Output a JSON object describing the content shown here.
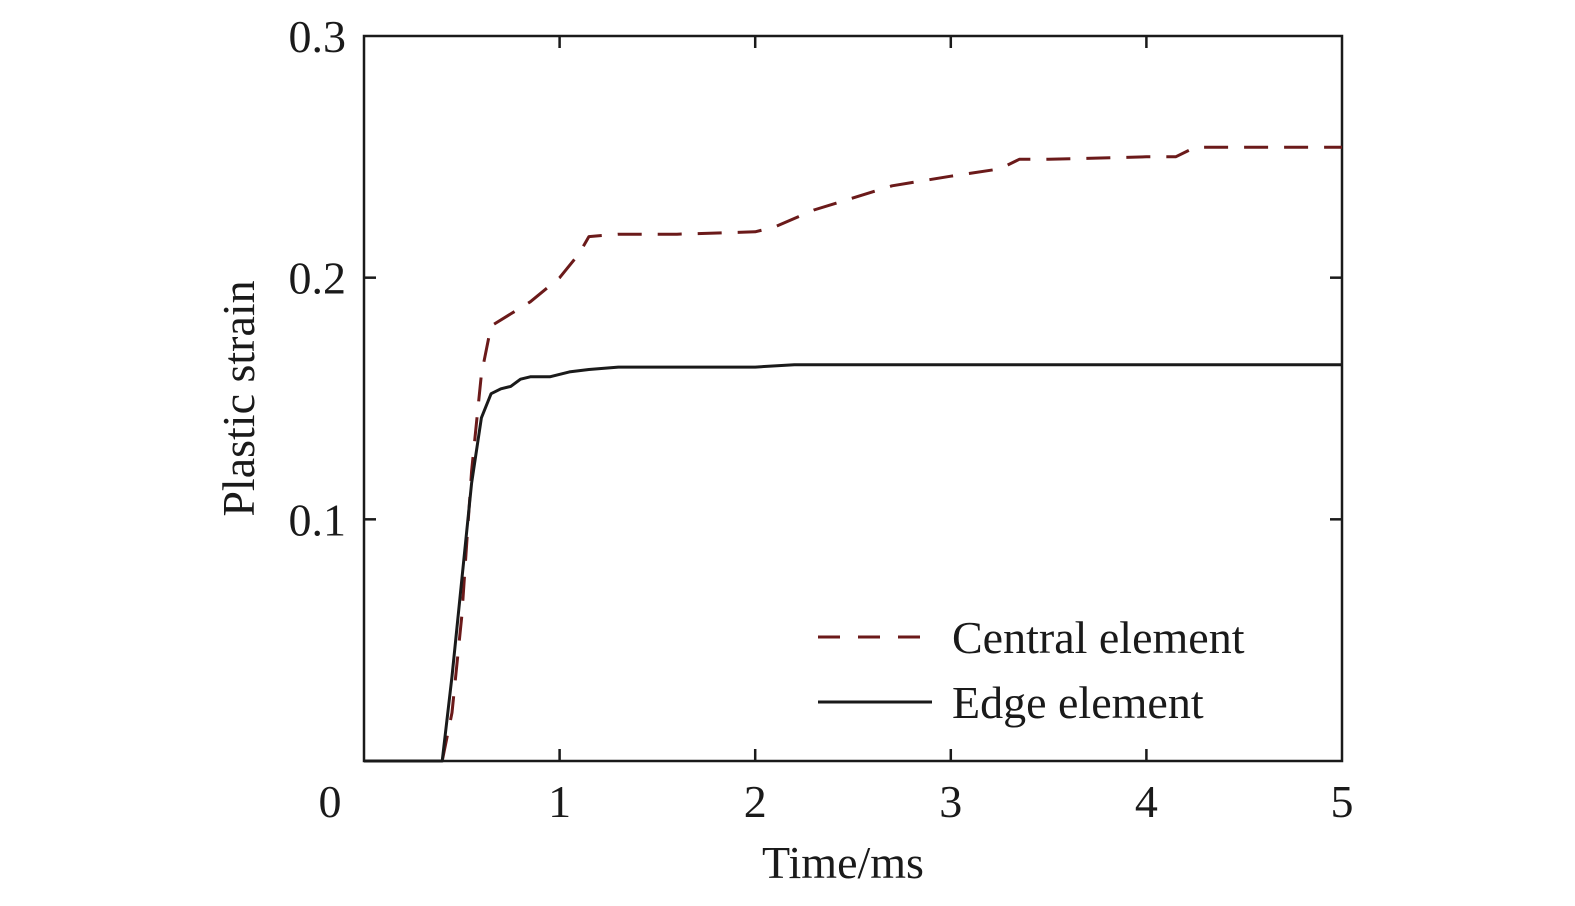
{
  "chart_data": {
    "type": "line",
    "xlabel": "Time/ms",
    "ylabel": "Plastic strain",
    "xlim": [
      0,
      5
    ],
    "ylim": [
      0,
      0.3
    ],
    "xticks": [
      0,
      1,
      2,
      3,
      4,
      5
    ],
    "yticks": [
      0.1,
      0.2,
      0.3
    ],
    "xtick_labels": [
      "0",
      "1",
      "2",
      "3",
      "4",
      "5"
    ],
    "ytick_labels": [
      "0.1",
      "0.2",
      "0.3"
    ],
    "grid": false,
    "legend_position": "bottom-right",
    "series": [
      {
        "name": "Central element",
        "style": "dashed",
        "color": "#6b1a1a",
        "points": [
          [
            0,
            0
          ],
          [
            0.4,
            0
          ],
          [
            0.45,
            0.02
          ],
          [
            0.5,
            0.06
          ],
          [
            0.55,
            0.12
          ],
          [
            0.6,
            0.16
          ],
          [
            0.65,
            0.18
          ],
          [
            0.75,
            0.185
          ],
          [
            0.85,
            0.19
          ],
          [
            1.0,
            0.2
          ],
          [
            1.1,
            0.21
          ],
          [
            1.15,
            0.217
          ],
          [
            1.3,
            0.218
          ],
          [
            1.6,
            0.218
          ],
          [
            2.0,
            0.219
          ],
          [
            2.1,
            0.221
          ],
          [
            2.3,
            0.228
          ],
          [
            2.5,
            0.233
          ],
          [
            2.7,
            0.238
          ],
          [
            3.0,
            0.242
          ],
          [
            3.25,
            0.245
          ],
          [
            3.35,
            0.249
          ],
          [
            3.5,
            0.249
          ],
          [
            4.0,
            0.25
          ],
          [
            4.15,
            0.25
          ],
          [
            4.25,
            0.254
          ],
          [
            4.5,
            0.254
          ],
          [
            5.0,
            0.254
          ]
        ]
      },
      {
        "name": "Edge element",
        "style": "solid",
        "color": "#1a1a1a",
        "points": [
          [
            0,
            0
          ],
          [
            0.4,
            0
          ],
          [
            0.45,
            0.035
          ],
          [
            0.5,
            0.075
          ],
          [
            0.55,
            0.115
          ],
          [
            0.6,
            0.142
          ],
          [
            0.65,
            0.152
          ],
          [
            0.7,
            0.154
          ],
          [
            0.75,
            0.155
          ],
          [
            0.8,
            0.158
          ],
          [
            0.85,
            0.159
          ],
          [
            0.95,
            0.159
          ],
          [
            1.05,
            0.161
          ],
          [
            1.15,
            0.162
          ],
          [
            1.3,
            0.163
          ],
          [
            1.6,
            0.163
          ],
          [
            2.0,
            0.163
          ],
          [
            2.2,
            0.164
          ],
          [
            5.0,
            0.164
          ]
        ]
      }
    ]
  }
}
